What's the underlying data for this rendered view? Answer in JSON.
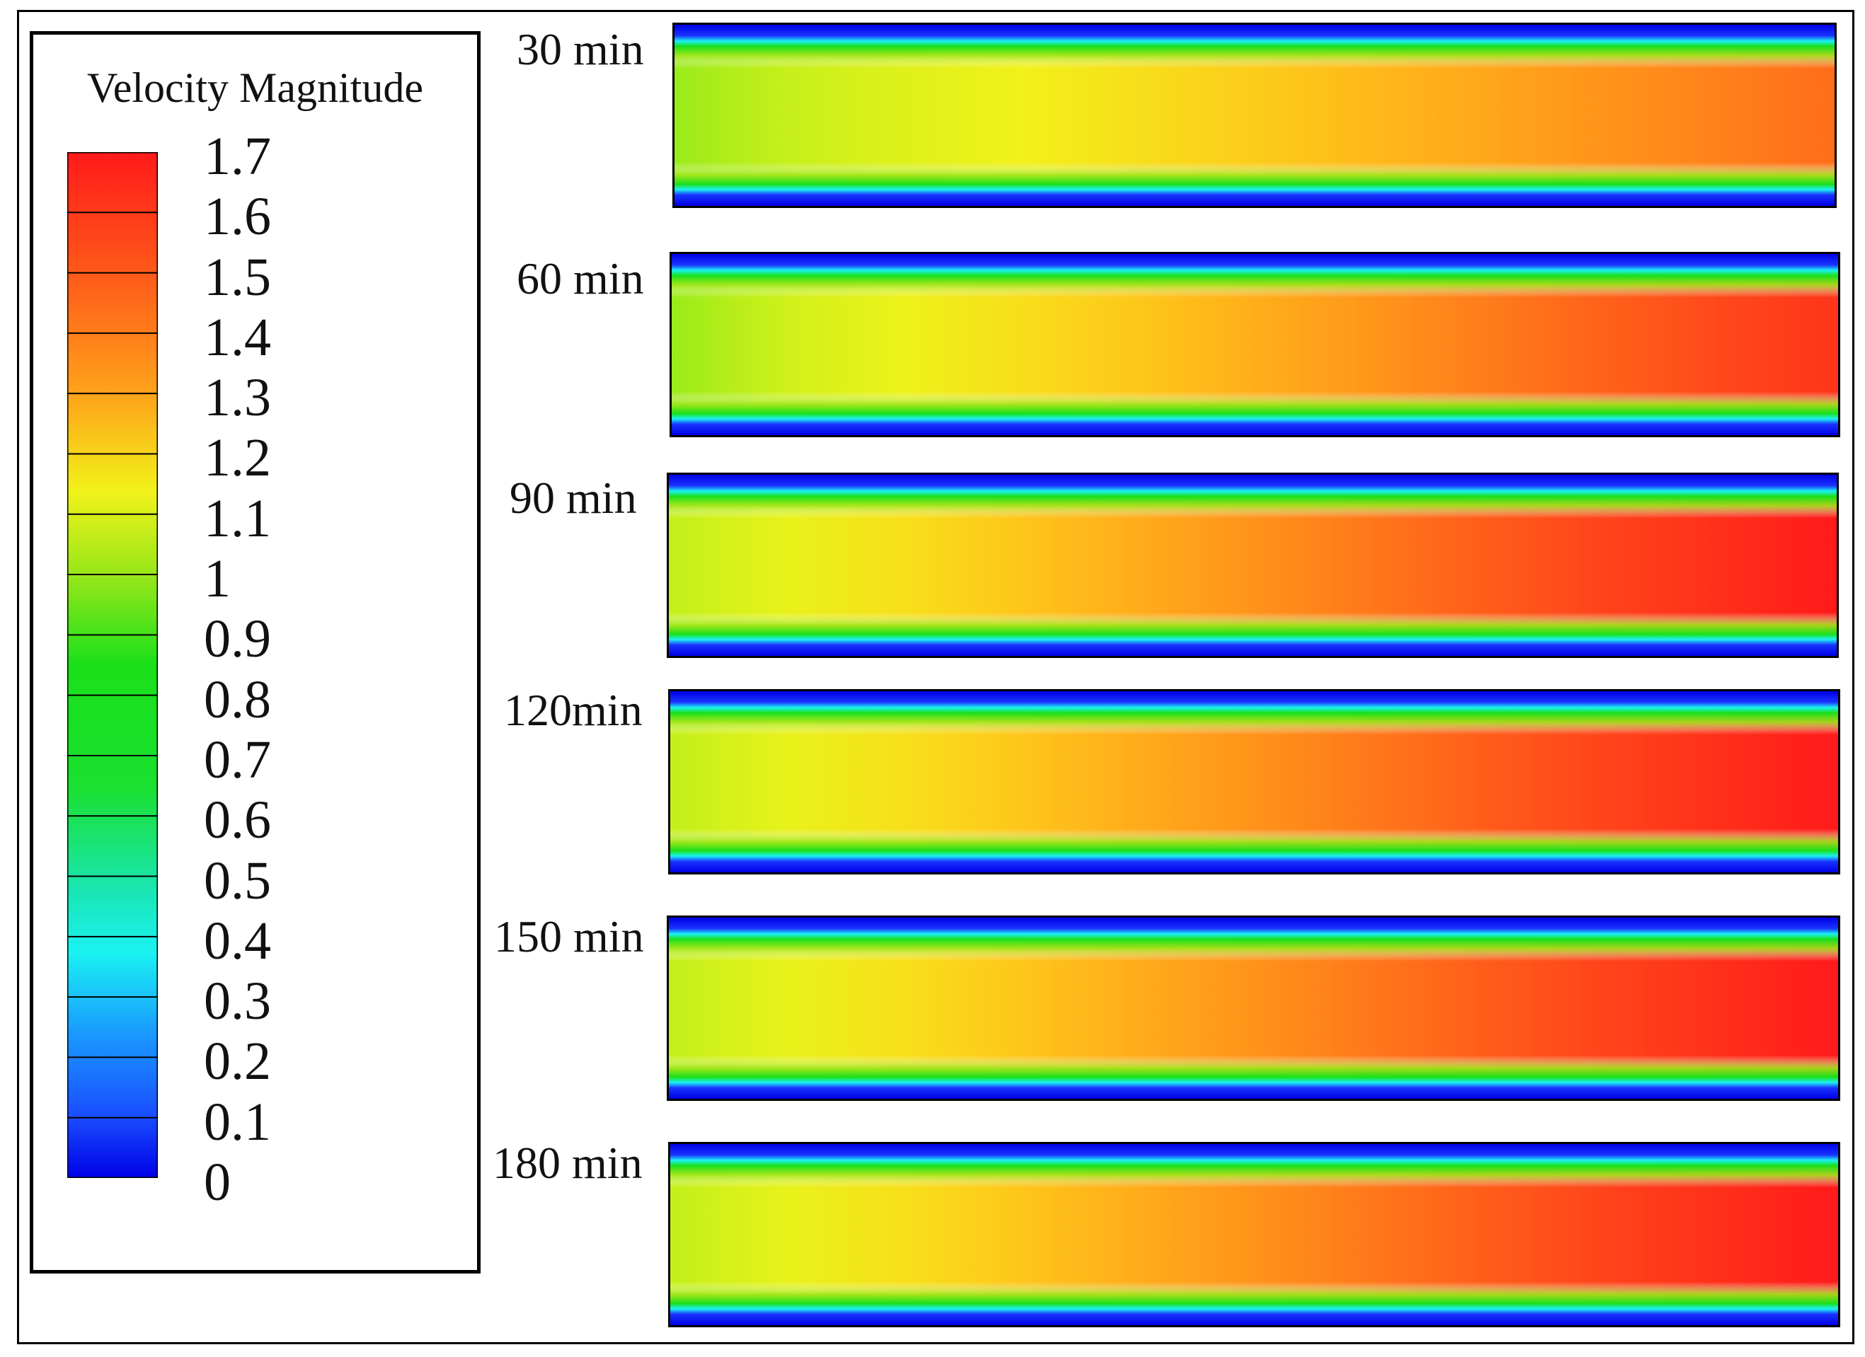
{
  "chart_data": {
    "type": "heatmap",
    "title": "Velocity Magnitude",
    "colorbar": {
      "min": 0,
      "max": 1.7,
      "step": 0.1,
      "tick_labels": [
        "1.7",
        "1.6",
        "1.5",
        "1.4",
        "1.3",
        "1.2",
        "1.1",
        "1",
        "0.9",
        "0.8",
        "0.7",
        "0.6",
        "0.5",
        "0.4",
        "0.3",
        "0.2",
        "0.1",
        "0"
      ],
      "band_colors": [
        "#ff1a1a",
        "#ff4d1a",
        "#ff8c1a",
        "#ffc21a",
        "#f2f21a",
        "#c2f01a",
        "#73e61a",
        "#1ae01a",
        "#1ae01a",
        "#1ae01a",
        "#1ae066",
        "#1ae6b3",
        "#1af2f2",
        "#1accff",
        "#1a99ff",
        "#1a66ff",
        "#1a33ff",
        "#0000e6"
      ]
    },
    "panels": [
      {
        "label": "30 min",
        "inlet_centerline_velocity": 1.15,
        "outlet_centerline_velocity": 1.55
      },
      {
        "label": "60 min",
        "inlet_centerline_velocity": 1.15,
        "outlet_centerline_velocity": 1.65
      },
      {
        "label": "90 min",
        "inlet_centerline_velocity": 1.2,
        "outlet_centerline_velocity": 1.7
      },
      {
        "label": "120min",
        "inlet_centerline_velocity": 1.2,
        "outlet_centerline_velocity": 1.7
      },
      {
        "label": "150 min",
        "inlet_centerline_velocity": 1.2,
        "outlet_centerline_velocity": 1.7
      },
      {
        "label": "180 min",
        "inlet_centerline_velocity": 1.2,
        "outlet_centerline_velocity": 1.7
      }
    ]
  }
}
